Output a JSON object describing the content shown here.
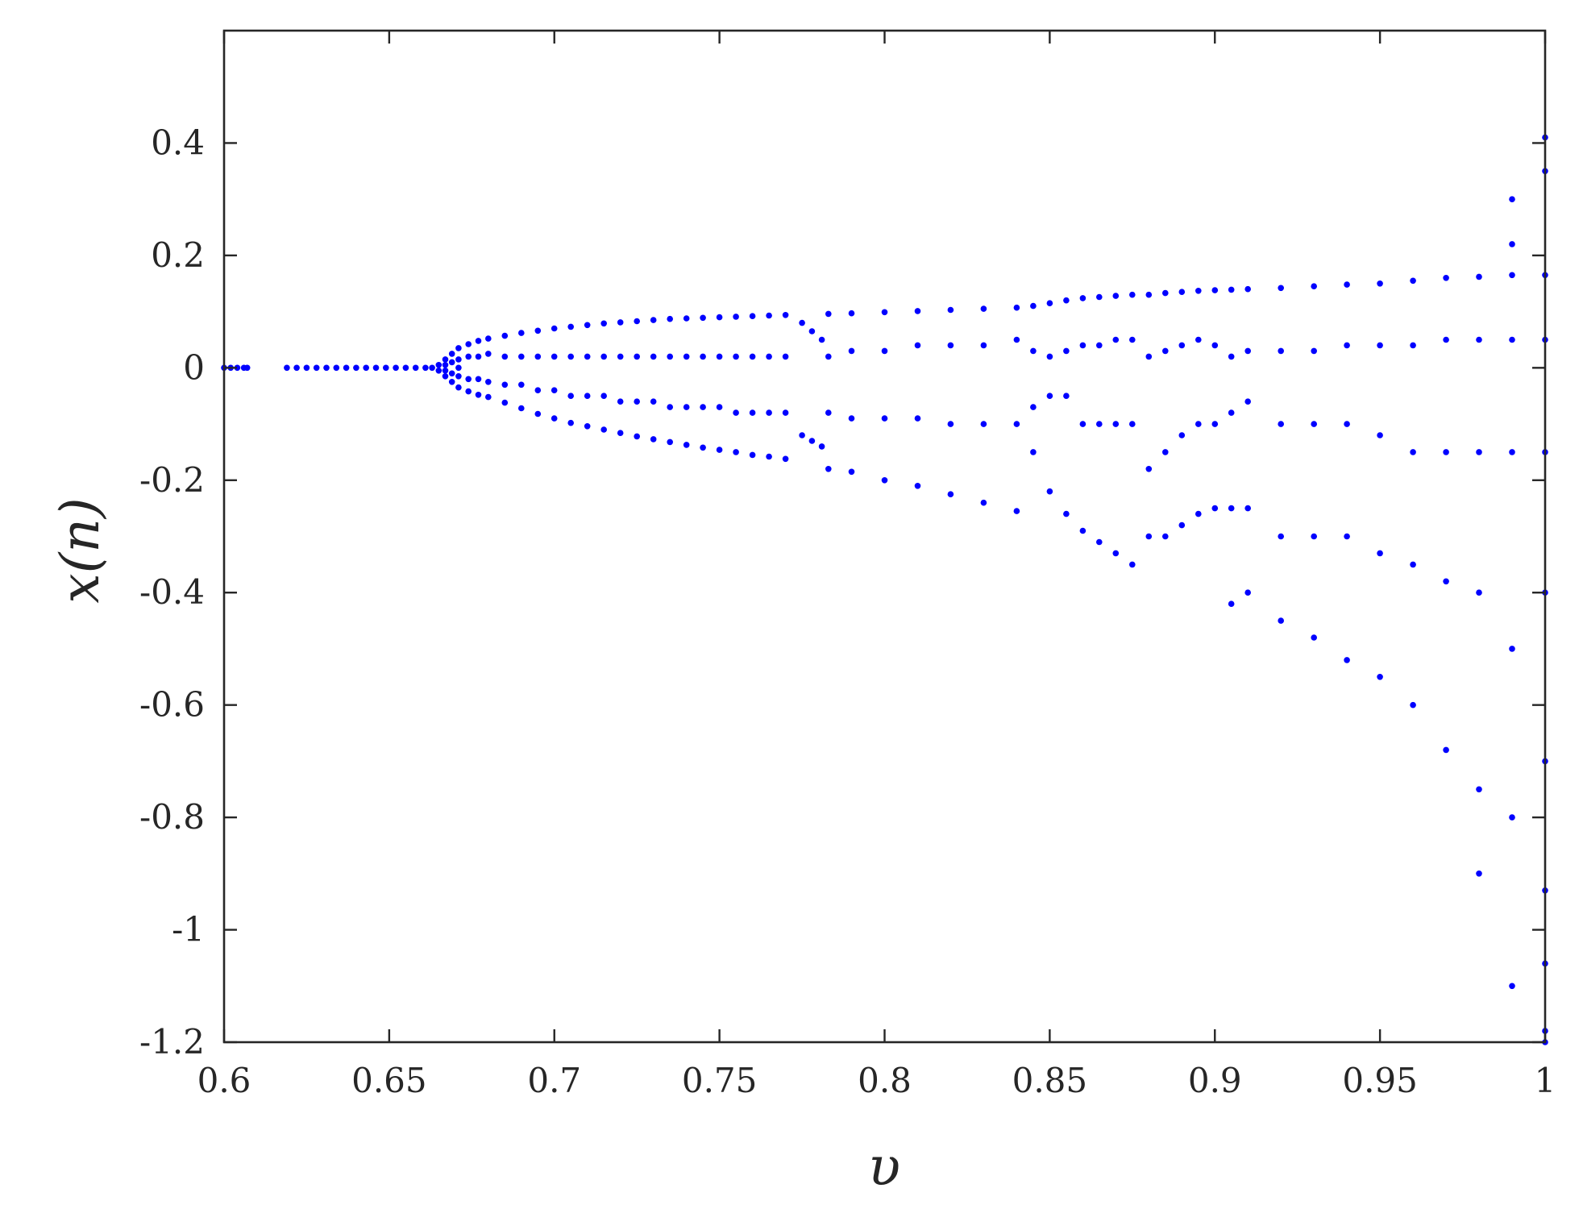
{
  "chart_data": {
    "type": "scatter",
    "title": "",
    "xlabel": "υ",
    "ylabel": "x(n)",
    "xlim": [
      0.6,
      1.0
    ],
    "ylim": [
      -1.2,
      0.6
    ],
    "xticks": [
      0.6,
      0.65,
      0.7,
      0.75,
      0.8,
      0.85,
      0.9,
      0.95,
      1.0
    ],
    "xtick_labels": [
      "0.6",
      "0.65",
      "0.7",
      "0.75",
      "0.8",
      "0.85",
      "0.9",
      "0.95",
      "1"
    ],
    "yticks": [
      0.4,
      0.2,
      0,
      -0.2,
      -0.4,
      -0.6,
      -0.8,
      -1,
      -1.2
    ],
    "ytick_labels": [
      "0.4",
      "0.2",
      "0",
      "-0.2",
      "-0.4",
      "-0.6",
      "-0.8",
      "-1",
      "-1.2"
    ],
    "grid": false,
    "marker_color": "#0000ff",
    "series": [
      {
        "values_xy": [
          [
            0.6,
            0
          ],
          [
            0.602,
            0
          ],
          [
            0.604,
            0
          ],
          [
            0.606,
            0
          ],
          [
            0.607,
            0
          ],
          [
            0.619,
            0
          ],
          [
            0.622,
            0
          ],
          [
            0.625,
            0
          ],
          [
            0.628,
            0
          ],
          [
            0.631,
            0
          ],
          [
            0.634,
            0
          ],
          [
            0.637,
            0
          ],
          [
            0.64,
            0
          ],
          [
            0.643,
            0
          ],
          [
            0.646,
            0
          ],
          [
            0.649,
            0
          ],
          [
            0.652,
            0
          ],
          [
            0.655,
            0
          ],
          [
            0.658,
            0
          ],
          [
            0.661,
            0
          ],
          [
            0.663,
            0
          ],
          [
            0.665,
            0.005
          ],
          [
            0.665,
            -0.005
          ],
          [
            0.667,
            0.015
          ],
          [
            0.667,
            0.005
          ],
          [
            0.667,
            -0.005
          ],
          [
            0.667,
            -0.015
          ],
          [
            0.669,
            0.025
          ],
          [
            0.669,
            0.01
          ],
          [
            0.669,
            -0.01
          ],
          [
            0.669,
            -0.025
          ],
          [
            0.671,
            0.035
          ],
          [
            0.671,
            0.015
          ],
          [
            0.671,
            0
          ],
          [
            0.671,
            -0.015
          ],
          [
            0.671,
            -0.035
          ],
          [
            0.674,
            0.042
          ],
          [
            0.674,
            0.02
          ],
          [
            0.674,
            -0.02
          ],
          [
            0.674,
            -0.042
          ],
          [
            0.677,
            0.048
          ],
          [
            0.677,
            0.02
          ],
          [
            0.677,
            -0.02
          ],
          [
            0.677,
            -0.048
          ],
          [
            0.68,
            0.052
          ],
          [
            0.68,
            0.025
          ],
          [
            0.68,
            -0.025
          ],
          [
            0.68,
            -0.052
          ],
          [
            0.685,
            0.057
          ],
          [
            0.685,
            0.02
          ],
          [
            0.685,
            -0.03
          ],
          [
            0.685,
            -0.062
          ],
          [
            0.69,
            0.062
          ],
          [
            0.69,
            0.02
          ],
          [
            0.69,
            -0.03
          ],
          [
            0.69,
            -0.072
          ],
          [
            0.695,
            0.066
          ],
          [
            0.695,
            0.02
          ],
          [
            0.695,
            -0.04
          ],
          [
            0.695,
            -0.082
          ],
          [
            0.7,
            0.07
          ],
          [
            0.7,
            0.02
          ],
          [
            0.7,
            -0.04
          ],
          [
            0.7,
            -0.09
          ],
          [
            0.705,
            0.073
          ],
          [
            0.705,
            0.02
          ],
          [
            0.705,
            -0.05
          ],
          [
            0.705,
            -0.098
          ],
          [
            0.71,
            0.076
          ],
          [
            0.71,
            0.02
          ],
          [
            0.71,
            -0.05
          ],
          [
            0.71,
            -0.104
          ],
          [
            0.715,
            0.079
          ],
          [
            0.715,
            0.02
          ],
          [
            0.715,
            -0.05
          ],
          [
            0.715,
            -0.11
          ],
          [
            0.72,
            0.081
          ],
          [
            0.72,
            0.02
          ],
          [
            0.72,
            -0.06
          ],
          [
            0.72,
            -0.116
          ],
          [
            0.725,
            0.083
          ],
          [
            0.725,
            0.02
          ],
          [
            0.725,
            -0.06
          ],
          [
            0.725,
            -0.122
          ],
          [
            0.73,
            0.085
          ],
          [
            0.73,
            0.02
          ],
          [
            0.73,
            -0.06
          ],
          [
            0.73,
            -0.127
          ],
          [
            0.735,
            0.087
          ],
          [
            0.735,
            0.02
          ],
          [
            0.735,
            -0.07
          ],
          [
            0.735,
            -0.132
          ],
          [
            0.74,
            0.088
          ],
          [
            0.74,
            0.02
          ],
          [
            0.74,
            -0.07
          ],
          [
            0.74,
            -0.137
          ],
          [
            0.745,
            0.089
          ],
          [
            0.745,
            0.02
          ],
          [
            0.745,
            -0.07
          ],
          [
            0.745,
            -0.142
          ],
          [
            0.75,
            0.09
          ],
          [
            0.75,
            0.02
          ],
          [
            0.75,
            -0.07
          ],
          [
            0.75,
            -0.146
          ],
          [
            0.755,
            0.091
          ],
          [
            0.755,
            0.02
          ],
          [
            0.755,
            -0.08
          ],
          [
            0.755,
            -0.15
          ],
          [
            0.76,
            0.092
          ],
          [
            0.76,
            0.02
          ],
          [
            0.76,
            -0.08
          ],
          [
            0.76,
            -0.155
          ],
          [
            0.765,
            0.093
          ],
          [
            0.765,
            0.02
          ],
          [
            0.765,
            -0.08
          ],
          [
            0.765,
            -0.158
          ],
          [
            0.77,
            0.094
          ],
          [
            0.77,
            0.02
          ],
          [
            0.77,
            -0.08
          ],
          [
            0.77,
            -0.162
          ],
          [
            0.775,
            0.08
          ],
          [
            0.775,
            -0.12
          ],
          [
            0.778,
            0.065
          ],
          [
            0.778,
            -0.13
          ],
          [
            0.781,
            0.05
          ],
          [
            0.781,
            -0.14
          ],
          [
            0.783,
            0.096
          ],
          [
            0.783,
            0.02
          ],
          [
            0.783,
            -0.08
          ],
          [
            0.783,
            -0.18
          ],
          [
            0.79,
            0.097
          ],
          [
            0.79,
            0.03
          ],
          [
            0.79,
            -0.09
          ],
          [
            0.79,
            -0.185
          ],
          [
            0.8,
            0.099
          ],
          [
            0.8,
            0.03
          ],
          [
            0.8,
            -0.09
          ],
          [
            0.8,
            -0.2
          ],
          [
            0.81,
            0.101
          ],
          [
            0.81,
            0.04
          ],
          [
            0.81,
            -0.09
          ],
          [
            0.81,
            -0.21
          ],
          [
            0.82,
            0.103
          ],
          [
            0.82,
            0.04
          ],
          [
            0.82,
            -0.1
          ],
          [
            0.82,
            -0.225
          ],
          [
            0.83,
            0.105
          ],
          [
            0.83,
            0.04
          ],
          [
            0.83,
            -0.1
          ],
          [
            0.83,
            -0.24
          ],
          [
            0.84,
            0.107
          ],
          [
            0.84,
            0.05
          ],
          [
            0.84,
            -0.1
          ],
          [
            0.84,
            -0.255
          ],
          [
            0.845,
            0.11
          ],
          [
            0.845,
            0.03
          ],
          [
            0.845,
            -0.07
          ],
          [
            0.845,
            -0.15
          ],
          [
            0.85,
            0.115
          ],
          [
            0.85,
            0.02
          ],
          [
            0.85,
            -0.05
          ],
          [
            0.85,
            -0.22
          ],
          [
            0.855,
            0.12
          ],
          [
            0.855,
            0.03
          ],
          [
            0.855,
            -0.05
          ],
          [
            0.855,
            -0.26
          ],
          [
            0.86,
            0.124
          ],
          [
            0.86,
            0.04
          ],
          [
            0.86,
            -0.1
          ],
          [
            0.86,
            -0.29
          ],
          [
            0.865,
            0.126
          ],
          [
            0.865,
            0.04
          ],
          [
            0.865,
            -0.1
          ],
          [
            0.865,
            -0.31
          ],
          [
            0.87,
            0.128
          ],
          [
            0.87,
            0.05
          ],
          [
            0.87,
            -0.1
          ],
          [
            0.87,
            -0.33
          ],
          [
            0.875,
            0.13
          ],
          [
            0.875,
            0.05
          ],
          [
            0.875,
            -0.1
          ],
          [
            0.875,
            -0.35
          ],
          [
            0.88,
            0.13
          ],
          [
            0.88,
            0.02
          ],
          [
            0.88,
            -0.18
          ],
          [
            0.88,
            -0.3
          ],
          [
            0.885,
            0.133
          ],
          [
            0.885,
            0.03
          ],
          [
            0.885,
            -0.15
          ],
          [
            0.885,
            -0.3
          ],
          [
            0.89,
            0.135
          ],
          [
            0.89,
            0.04
          ],
          [
            0.89,
            -0.12
          ],
          [
            0.89,
            -0.28
          ],
          [
            0.895,
            0.137
          ],
          [
            0.895,
            0.05
          ],
          [
            0.895,
            -0.1
          ],
          [
            0.895,
            -0.26
          ],
          [
            0.9,
            0.138
          ],
          [
            0.9,
            0.04
          ],
          [
            0.9,
            -0.1
          ],
          [
            0.9,
            -0.25
          ],
          [
            0.905,
            0.139
          ],
          [
            0.905,
            0.02
          ],
          [
            0.905,
            -0.08
          ],
          [
            0.905,
            -0.25
          ],
          [
            0.905,
            -0.42
          ],
          [
            0.91,
            0.14
          ],
          [
            0.91,
            0.03
          ],
          [
            0.91,
            -0.06
          ],
          [
            0.91,
            -0.25
          ],
          [
            0.91,
            -0.4
          ],
          [
            0.92,
            0.142
          ],
          [
            0.92,
            0.03
          ],
          [
            0.92,
            -0.1
          ],
          [
            0.92,
            -0.3
          ],
          [
            0.92,
            -0.45
          ],
          [
            0.93,
            0.145
          ],
          [
            0.93,
            0.03
          ],
          [
            0.93,
            -0.1
          ],
          [
            0.93,
            -0.3
          ],
          [
            0.93,
            -0.48
          ],
          [
            0.94,
            0.148
          ],
          [
            0.94,
            0.04
          ],
          [
            0.94,
            -0.1
          ],
          [
            0.94,
            -0.3
          ],
          [
            0.94,
            -0.52
          ],
          [
            0.95,
            0.15
          ],
          [
            0.95,
            0.04
          ],
          [
            0.95,
            -0.12
          ],
          [
            0.95,
            -0.33
          ],
          [
            0.95,
            -0.55
          ],
          [
            0.96,
            0.155
          ],
          [
            0.96,
            0.04
          ],
          [
            0.96,
            -0.15
          ],
          [
            0.96,
            -0.35
          ],
          [
            0.96,
            -0.6
          ],
          [
            0.97,
            0.16
          ],
          [
            0.97,
            0.05
          ],
          [
            0.97,
            -0.15
          ],
          [
            0.97,
            -0.38
          ],
          [
            0.97,
            -0.68
          ],
          [
            0.98,
            0.162
          ],
          [
            0.98,
            0.05
          ],
          [
            0.98,
            -0.15
          ],
          [
            0.98,
            -0.4
          ],
          [
            0.98,
            -0.75
          ],
          [
            0.98,
            -0.9
          ],
          [
            0.99,
            0.165
          ],
          [
            0.99,
            0.05
          ],
          [
            0.99,
            -0.15
          ],
          [
            0.99,
            -0.5
          ],
          [
            0.99,
            -0.8
          ],
          [
            0.99,
            -1.1
          ],
          [
            0.99,
            0.22
          ],
          [
            0.99,
            0.3
          ],
          [
            1.0,
            0.41
          ],
          [
            1.0,
            0.35
          ],
          [
            1.0,
            0.165
          ],
          [
            1.0,
            0.05
          ],
          [
            1.0,
            -0.15
          ],
          [
            1.0,
            -0.4
          ],
          [
            1.0,
            -0.7
          ],
          [
            1.0,
            -0.93
          ],
          [
            1.0,
            -1.06
          ],
          [
            1.0,
            -1.18
          ],
          [
            1.0,
            -1.2
          ]
        ]
      }
    ]
  }
}
